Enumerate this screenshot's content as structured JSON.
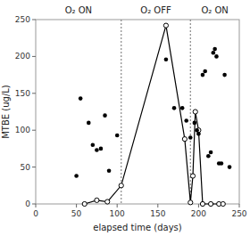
{
  "chart_data": {
    "type": "line",
    "annotations": [
      "O₂ ON",
      "O₂ OFF",
      "O₂ ON"
    ],
    "xlabel": "elapsed time (days)",
    "ylabel": "MTBE (ug/L)",
    "xlim": [
      0,
      250
    ],
    "ylim": [
      0,
      250
    ],
    "xticks": [
      0,
      50,
      100,
      150,
      200,
      250
    ],
    "yticks": [
      0,
      50,
      100,
      150,
      200,
      250
    ],
    "vlines": [
      105,
      190
    ],
    "series": [
      {
        "type": "line",
        "marker": "open-circle",
        "color": "#000000",
        "x": [
          60,
          75,
          88,
          105,
          160,
          183,
          190,
          193,
          196,
          200,
          205,
          215,
          225,
          230
        ],
        "values": [
          0,
          5,
          3,
          25,
          242,
          88,
          2,
          38,
          125,
          100,
          0,
          0,
          0,
          0
        ]
      },
      {
        "type": "scatter",
        "marker": "filled-circle",
        "color": "#000000",
        "x": [
          50,
          55,
          65,
          70,
          75,
          80,
          85,
          90,
          100,
          160,
          170,
          180,
          185,
          190,
          195,
          198,
          200,
          205,
          208,
          212,
          215,
          218,
          220,
          222,
          225,
          228,
          232,
          238
        ],
        "values": [
          38,
          143,
          110,
          80,
          73,
          75,
          120,
          45,
          93,
          196,
          130,
          130,
          113,
          90,
          110,
          100,
          95,
          175,
          180,
          65,
          70,
          205,
          210,
          200,
          55,
          55,
          175,
          50
        ]
      }
    ]
  }
}
